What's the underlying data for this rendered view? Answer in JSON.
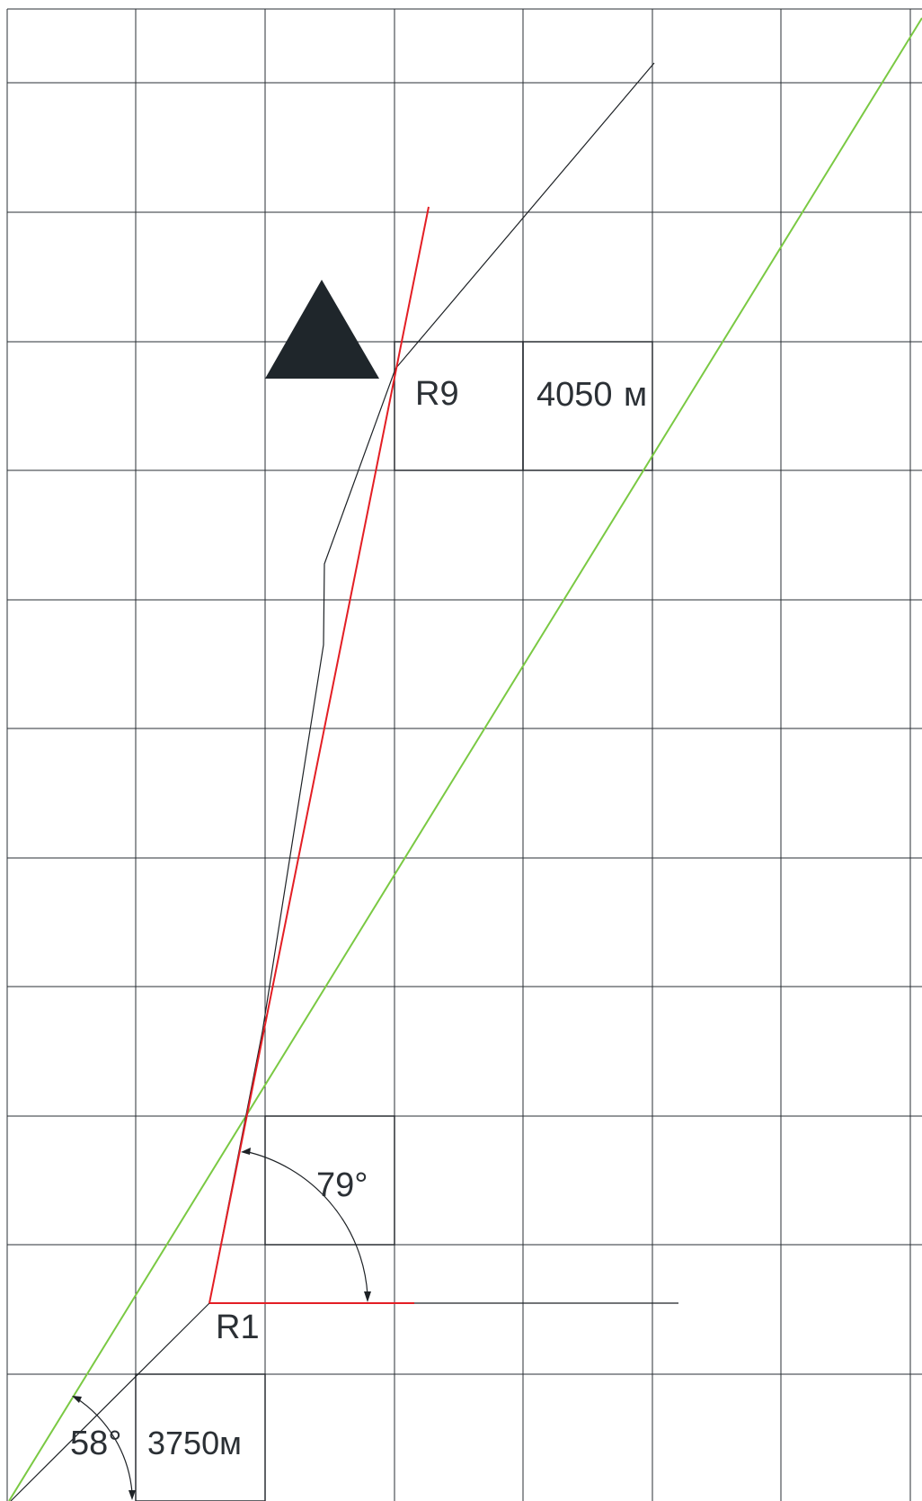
{
  "labels": {
    "r9": "R9",
    "r1": "R1",
    "distance_r9": "4050",
    "distance_r9_unit": "м",
    "distance_r1": "3750м",
    "angle_r1": "79°",
    "angle_bottom": "58°"
  },
  "colors": {
    "grid": "#2a2f34",
    "red_line": "#e31e24",
    "green_line": "#7ac943",
    "track": "#1e2226",
    "landmark": "#1f262b",
    "text": "#2b3035"
  },
  "icons": {
    "landmark": "triangle-landmark"
  }
}
